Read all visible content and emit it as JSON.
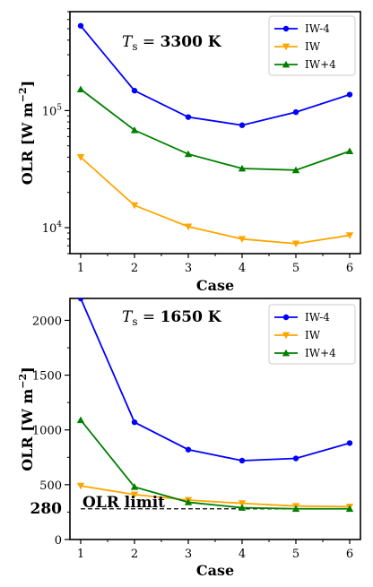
{
  "chart_data": [
    {
      "type": "line",
      "yscale": "log",
      "ylim": [
        6000,
        700000
      ],
      "xlim": [
        0.8,
        6.2
      ],
      "x": [
        1,
        2,
        3,
        4,
        5,
        6
      ],
      "xticks": [
        "1",
        "2",
        "3",
        "4",
        "5",
        "6"
      ],
      "ytick_labels": [
        {
          "value": 10000,
          "base": "10",
          "exp": "4"
        },
        {
          "value": 100000,
          "base": "10",
          "exp": "5"
        }
      ],
      "xlabel": "Case",
      "ylabel": "OLR [W m",
      "ylabel_exp": "−2",
      "ylabel_close": "]",
      "annotation": {
        "prefix": "T",
        "sub": "s",
        "eq": " = ",
        "value": "3300 K"
      },
      "legend_position": "top-right",
      "grid": false,
      "series": [
        {
          "name": "IW-4",
          "color": "#0000ff",
          "marker": "circle",
          "values": [
            530000,
            148000,
            88000,
            75000,
            97000,
            137000
          ]
        },
        {
          "name": "IW",
          "color": "#ffa500",
          "marker": "triangle-down",
          "values": [
            40000,
            15500,
            10200,
            8000,
            7300,
            8600
          ]
        },
        {
          "name": "IW+4",
          "color": "#008000",
          "marker": "triangle-up",
          "values": [
            152000,
            68000,
            42500,
            32000,
            31000,
            45000
          ]
        }
      ]
    },
    {
      "type": "line",
      "yscale": "linear",
      "ylim": [
        0,
        2200
      ],
      "xlim": [
        0.8,
        6.2
      ],
      "x": [
        1,
        2,
        3,
        4,
        5,
        6
      ],
      "xticks": [
        "1",
        "2",
        "3",
        "4",
        "5",
        "6"
      ],
      "yticks": [
        0,
        500,
        1000,
        1500,
        2000
      ],
      "ytick_labels": [
        "0",
        "500",
        "1000",
        "1500",
        "2000"
      ],
      "xlabel": "Case",
      "ylabel": "OLR [W m",
      "ylabel_exp": "−2",
      "ylabel_close": "]",
      "annotation": {
        "prefix": "T",
        "sub": "s",
        "eq": " = ",
        "value": "1650 K"
      },
      "legend_position": "top-right",
      "grid": false,
      "reference_line": {
        "value": 280,
        "label": "280",
        "text": "OLR limit",
        "style": "dashed",
        "color": "#000000"
      },
      "series": [
        {
          "name": "IW-4",
          "color": "#0000ff",
          "marker": "circle",
          "values": [
            2200,
            1070,
            820,
            720,
            740,
            880
          ]
        },
        {
          "name": "IW",
          "color": "#ffa500",
          "marker": "triangle-down",
          "values": [
            490,
            410,
            360,
            330,
            305,
            300
          ]
        },
        {
          "name": "IW+4",
          "color": "#008000",
          "marker": "triangle-up",
          "values": [
            1090,
            480,
            340,
            290,
            280,
            280
          ]
        }
      ]
    }
  ]
}
